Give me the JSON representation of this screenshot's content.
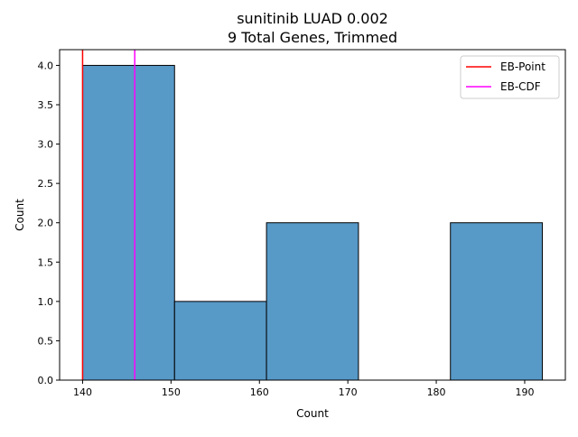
{
  "chart_data": {
    "type": "bar",
    "title": "sunitinib LUAD 0.002",
    "subtitle": "9 Total Genes, Trimmed",
    "xlabel": "Count",
    "ylabel": "Count",
    "xlim": [
      137.4,
      194.6
    ],
    "ylim": [
      0,
      4.2
    ],
    "xticks": [
      140,
      150,
      160,
      170,
      180,
      190
    ],
    "yticks": [
      0.0,
      0.5,
      1.0,
      1.5,
      2.0,
      2.5,
      3.0,
      3.5,
      4.0
    ],
    "bins": [
      {
        "x0": 140.0,
        "x1": 150.4,
        "count": 4
      },
      {
        "x0": 150.4,
        "x1": 160.8,
        "count": 1
      },
      {
        "x0": 160.8,
        "x1": 171.2,
        "count": 2
      },
      {
        "x0": 171.2,
        "x1": 181.6,
        "count": 0
      },
      {
        "x0": 181.6,
        "x1": 192.0,
        "count": 2
      }
    ],
    "bar_color": "#5799c7",
    "vlines": [
      {
        "name": "EB-Point",
        "x": 140.0,
        "color": "#ff0000"
      },
      {
        "name": "EB-CDF",
        "x": 145.9,
        "color": "#ff00ff"
      }
    ],
    "legend_position": "upper right",
    "grid": false
  }
}
